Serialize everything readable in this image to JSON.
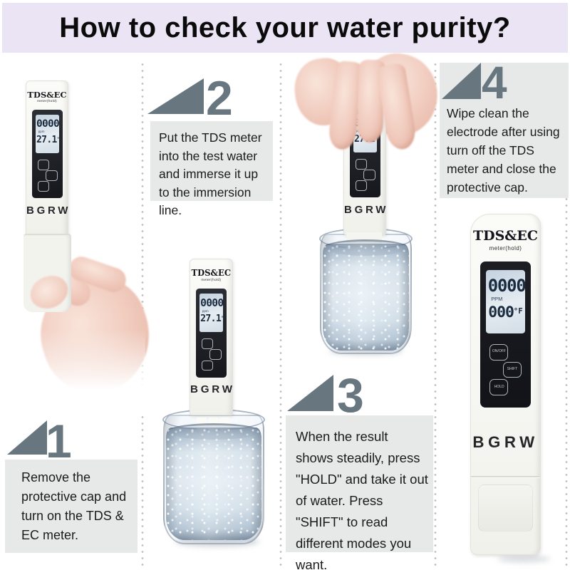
{
  "title": "How to check your water purity?",
  "steps": [
    {
      "number": "1",
      "text": "Remove the protective cap and turn on the TDS & EC meter."
    },
    {
      "number": "2",
      "text": "Put the TDS meter into the test water and immerse it up to the immersion line."
    },
    {
      "number": "3",
      "text": "When the result shows steadily, press \"HOLD\" and take it out of water. Press \"SHIFT\" to read different modes you want."
    },
    {
      "number": "4",
      "text": "Wipe clean the electrode after using turn off the TDS meter and close the protective cap."
    }
  ],
  "meter": {
    "brand_title": "TDS&EC",
    "brand_subtitle": "meter(hold)",
    "brand_name": "BGRW",
    "small_lcd": {
      "value": "0000",
      "unit": "ppm",
      "temp": "27.1",
      "temp_unit": "°C"
    },
    "large_lcd": {
      "value": "0000",
      "unit": "PPM",
      "secondary": "000",
      "secondary_unit": "°F"
    },
    "buttons": [
      {
        "label": "ON/OFF"
      },
      {
        "label": "SHIFT"
      },
      {
        "label": "HOLD"
      }
    ]
  },
  "colors": {
    "accent_slate": "#68777f",
    "title_bg": "#eae4f4",
    "box_bg": "#e7e9e9"
  }
}
